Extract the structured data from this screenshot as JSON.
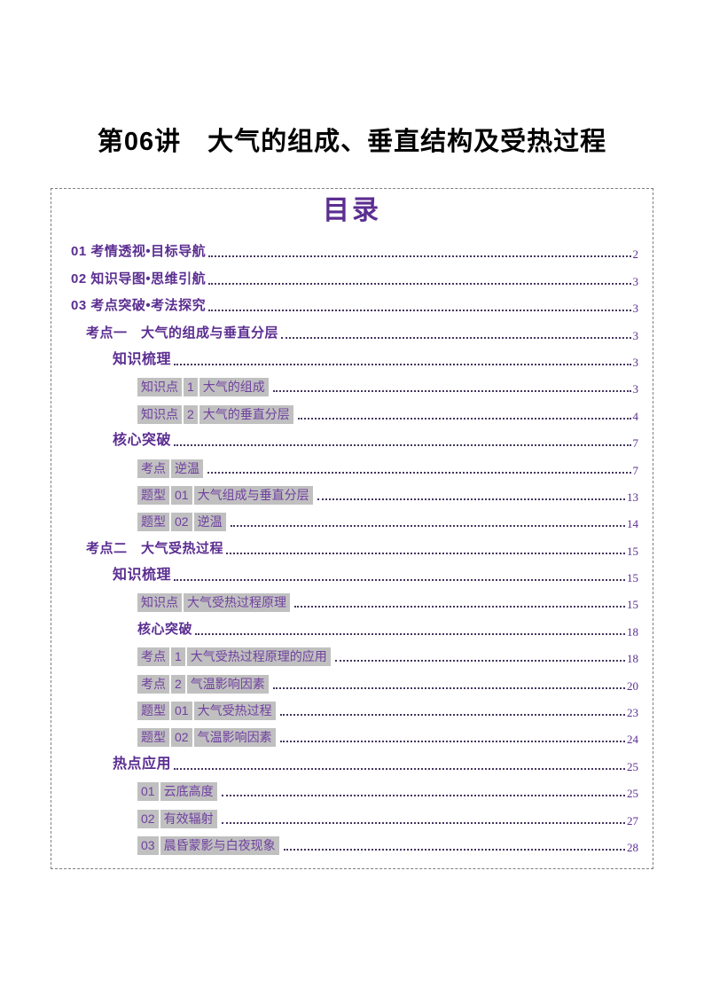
{
  "page_title": "第06讲　大气的组成、垂直结构及受热过程",
  "colors": {
    "accent_purple": "#5B2E91",
    "highlight_text_purple": "#7040A0",
    "highlight_gray": "#C0C0C0",
    "dashed_border_gray": "#7f7f7f",
    "title_black": "#000000"
  },
  "toc": {
    "heading": "目录",
    "rows": [
      {
        "indent": 1,
        "style": "section",
        "parts": [
          "01 考情透视•目标导航"
        ],
        "page": "2"
      },
      {
        "indent": 1,
        "style": "section",
        "parts": [
          "02 知识导图•思维引航"
        ],
        "page": "3"
      },
      {
        "indent": 1,
        "style": "section",
        "parts": [
          "03 考点突破•考法探究"
        ],
        "page": "3"
      },
      {
        "indent": 2,
        "style": "section",
        "parts": [
          "考点一　大气的组成与垂直分层"
        ],
        "page": "3"
      },
      {
        "indent": 3,
        "style": "section",
        "parts": [
          "知识梳理"
        ],
        "page": "3"
      },
      {
        "indent": 4,
        "style": "highlight",
        "parts": [
          "知识点",
          "1",
          "大气的组成"
        ],
        "page": "3"
      },
      {
        "indent": 4,
        "style": "highlight",
        "parts": [
          "知识点",
          "2",
          "大气的垂直分层"
        ],
        "page": "4"
      },
      {
        "indent": 3,
        "style": "section",
        "parts": [
          "核心突破"
        ],
        "page": "7"
      },
      {
        "indent": 4,
        "style": "highlight",
        "parts": [
          "考点",
          "逆温"
        ],
        "page": "7"
      },
      {
        "indent": 4,
        "style": "highlight",
        "parts": [
          "题型",
          "01",
          "大气组成与垂直分层"
        ],
        "page": "13"
      },
      {
        "indent": 4,
        "style": "highlight",
        "parts": [
          "题型",
          "02",
          "逆温"
        ],
        "page": "14"
      },
      {
        "indent": 2,
        "style": "section",
        "parts": [
          "考点二　大气受热过程"
        ],
        "page": "15"
      },
      {
        "indent": 3,
        "style": "section",
        "parts": [
          "知识梳理"
        ],
        "page": "15"
      },
      {
        "indent": 4,
        "style": "highlight",
        "parts": [
          "知识点",
          "大气受热过程原理"
        ],
        "page": "15"
      },
      {
        "indent": 4,
        "style": "section",
        "parts": [
          "核心突破"
        ],
        "page": "18"
      },
      {
        "indent": 4,
        "style": "highlight",
        "parts": [
          "考点",
          "1",
          "大气受热过程原理的应用"
        ],
        "page": "18"
      },
      {
        "indent": 4,
        "style": "highlight",
        "parts": [
          "考点",
          "2",
          "气温影响因素"
        ],
        "page": "20"
      },
      {
        "indent": 4,
        "style": "highlight",
        "parts": [
          "题型",
          "01",
          "大气受热过程"
        ],
        "page": "23"
      },
      {
        "indent": 4,
        "style": "highlight",
        "parts": [
          "题型",
          "02",
          "气温影响因素"
        ],
        "page": "24"
      },
      {
        "indent": 3,
        "style": "section",
        "parts": [
          "热点应用"
        ],
        "page": "25"
      },
      {
        "indent": 4,
        "style": "highlight",
        "parts": [
          "01",
          "云底高度"
        ],
        "page": "25"
      },
      {
        "indent": 4,
        "style": "highlight",
        "parts": [
          "02",
          "有效辐射"
        ],
        "page": "27"
      },
      {
        "indent": 4,
        "style": "highlight",
        "parts": [
          "03",
          "晨昏蒙影与白夜现象"
        ],
        "page": "28"
      }
    ]
  }
}
